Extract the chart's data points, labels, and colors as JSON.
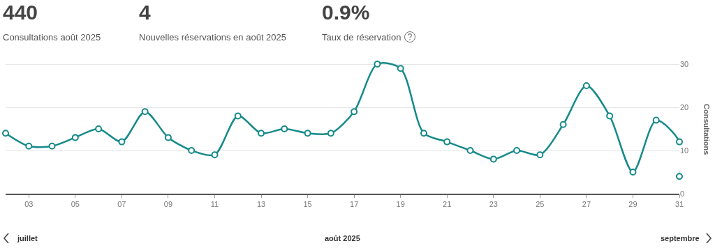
{
  "chart_data": {
    "type": "line",
    "xlabel": "août 2025",
    "ylabel": "Consultations",
    "x": [
      2,
      3,
      4,
      5,
      6,
      7,
      8,
      9,
      10,
      11,
      12,
      13,
      14,
      15,
      16,
      17,
      18,
      19,
      20,
      21,
      22,
      23,
      24,
      25,
      26,
      27,
      28,
      29,
      30,
      31,
      31
    ],
    "series": [
      {
        "color": "#178a8a",
        "values": [
          14,
          11,
          11,
          13,
          15,
          12,
          19,
          13,
          10,
          9,
          18,
          14,
          15,
          14,
          14,
          19,
          30,
          29,
          14,
          12,
          10,
          8,
          10,
          9,
          16,
          25,
          18,
          5,
          17,
          12,
          4
        ]
      }
    ],
    "xlim": [
      2,
      31
    ],
    "xticks": [
      {
        "value": 3,
        "label": "03"
      },
      {
        "value": 5,
        "label": "05"
      },
      {
        "value": 7,
        "label": "07"
      },
      {
        "value": 9,
        "label": "09"
      },
      11,
      13,
      15,
      17,
      19,
      21,
      23,
      25,
      27,
      29,
      31
    ],
    "ylim": [
      0,
      30
    ],
    "yticks": [
      0,
      10,
      20,
      30
    ],
    "grid": "y",
    "marker": "circle",
    "line_style": "solid",
    "annotations": [
      "440",
      "Consultations août 2025",
      "4",
      "Nouvelles réservations en août 2025",
      "0.9%",
      "Taux de réservation",
      "juillet",
      "septembre"
    ]
  }
}
